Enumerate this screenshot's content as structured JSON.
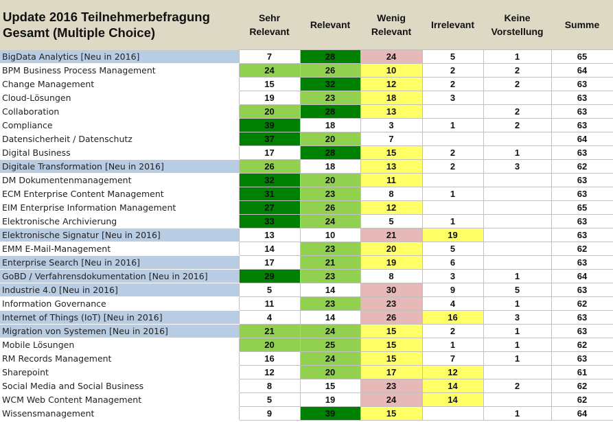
{
  "title_line1": "Update 2016 Teilnehmerbefragung",
  "title_line2": "Gesamt (Multiple Choice)",
  "columns": [
    "Sehr Relevant",
    "Relevant",
    "Wenig Relevant",
    "Irrelevant",
    "Keine Vorstellung",
    "Summe"
  ],
  "colors": {
    "g": "#008000",
    "l": "#92D050",
    "y": "#FFFF66",
    "r": "#E6B8B7",
    "": "#FFFFFF",
    "highlight": "#B8CCE4",
    "header": "#DDD9C4"
  },
  "rows": [
    {
      "label": "BigData Analytics [Neu in 2016]",
      "hl": true,
      "values": [
        "7",
        "28",
        "24",
        "5",
        "1",
        "65"
      ],
      "fills": [
        "",
        "g",
        "r",
        "",
        "",
        ""
      ]
    },
    {
      "label": "BPM Business Process Management",
      "hl": false,
      "values": [
        "24",
        "26",
        "10",
        "2",
        "2",
        "64"
      ],
      "fills": [
        "l",
        "l",
        "y",
        "",
        "",
        ""
      ]
    },
    {
      "label": "Change Management",
      "hl": false,
      "values": [
        "15",
        "32",
        "12",
        "2",
        "2",
        "63"
      ],
      "fills": [
        "",
        "g",
        "y",
        "",
        "",
        ""
      ]
    },
    {
      "label": "Cloud-Lösungen",
      "hl": false,
      "values": [
        "19",
        "23",
        "18",
        "3",
        "",
        "63"
      ],
      "fills": [
        "",
        "l",
        "y",
        "",
        "",
        ""
      ]
    },
    {
      "label": "Collaboration",
      "hl": false,
      "values": [
        "20",
        "28",
        "13",
        "",
        "2",
        "63"
      ],
      "fills": [
        "l",
        "g",
        "y",
        "",
        "",
        ""
      ]
    },
    {
      "label": "Compliance",
      "hl": false,
      "values": [
        "39",
        "18",
        "3",
        "1",
        "2",
        "63"
      ],
      "fills": [
        "g",
        "",
        "",
        "",
        "",
        ""
      ]
    },
    {
      "label": "Datensicherheit / Datenschutz",
      "hl": false,
      "values": [
        "37",
        "20",
        "7",
        "",
        "",
        "64"
      ],
      "fills": [
        "g",
        "l",
        "",
        "",
        "",
        ""
      ]
    },
    {
      "label": "Digital Business",
      "hl": false,
      "values": [
        "17",
        "28",
        "15",
        "2",
        "1",
        "63"
      ],
      "fills": [
        "",
        "g",
        "y",
        "",
        "",
        ""
      ]
    },
    {
      "label": "Digitale Transformation [Neu in 2016]",
      "hl": true,
      "values": [
        "26",
        "18",
        "13",
        "2",
        "3",
        "62"
      ],
      "fills": [
        "l",
        "",
        "y",
        "",
        "",
        ""
      ]
    },
    {
      "label": "DM Dokumentenmanagement",
      "hl": false,
      "values": [
        "32",
        "20",
        "11",
        "",
        "",
        "63"
      ],
      "fills": [
        "g",
        "l",
        "y",
        "",
        "",
        ""
      ]
    },
    {
      "label": "ECM Enterprise Content Management",
      "hl": false,
      "values": [
        "31",
        "23",
        "8",
        "1",
        "",
        "63"
      ],
      "fills": [
        "g",
        "l",
        "",
        "",
        "",
        ""
      ]
    },
    {
      "label": "EIM Enterprise Information Management",
      "hl": false,
      "values": [
        "27",
        "26",
        "12",
        "",
        "",
        "65"
      ],
      "fills": [
        "g",
        "l",
        "y",
        "",
        "",
        ""
      ]
    },
    {
      "label": "Elektronische Archivierung",
      "hl": false,
      "values": [
        "33",
        "24",
        "5",
        "1",
        "",
        "63"
      ],
      "fills": [
        "g",
        "l",
        "",
        "",
        "",
        ""
      ]
    },
    {
      "label": "Elektronische Signatur [Neu in 2016]",
      "hl": true,
      "values": [
        "13",
        "10",
        "21",
        "19",
        "",
        "63"
      ],
      "fills": [
        "",
        "",
        "r",
        "y",
        "",
        ""
      ]
    },
    {
      "label": "EMM E-Mail-Management",
      "hl": false,
      "values": [
        "14",
        "23",
        "20",
        "5",
        "",
        "62"
      ],
      "fills": [
        "",
        "l",
        "y",
        "",
        "",
        ""
      ]
    },
    {
      "label": "Enterprise Search [Neu in 2016]",
      "hl": true,
      "values": [
        "17",
        "21",
        "19",
        "6",
        "",
        "63"
      ],
      "fills": [
        "",
        "l",
        "y",
        "",
        "",
        ""
      ]
    },
    {
      "label": "GoBD / Verfahrensdokumentation [Neu in 2016]",
      "hl": true,
      "values": [
        "29",
        "23",
        "8",
        "3",
        "1",
        "64"
      ],
      "fills": [
        "g",
        "l",
        "",
        "",
        "",
        ""
      ]
    },
    {
      "label": "Industrie 4.0 [Neu in 2016]",
      "hl": true,
      "values": [
        "5",
        "14",
        "30",
        "9",
        "5",
        "63"
      ],
      "fills": [
        "",
        "",
        "r",
        "",
        "",
        ""
      ]
    },
    {
      "label": "Information Governance",
      "hl": false,
      "values": [
        "11",
        "23",
        "23",
        "4",
        "1",
        "62"
      ],
      "fills": [
        "",
        "l",
        "r",
        "",
        "",
        ""
      ]
    },
    {
      "label": "Internet of Things (IoT) [Neu in 2016]",
      "hl": true,
      "values": [
        "4",
        "14",
        "26",
        "16",
        "3",
        "63"
      ],
      "fills": [
        "",
        "",
        "r",
        "y",
        "",
        ""
      ]
    },
    {
      "label": "Migration von Systemen [Neu in 2016]",
      "hl": true,
      "values": [
        "21",
        "24",
        "15",
        "2",
        "1",
        "63"
      ],
      "fills": [
        "l",
        "l",
        "y",
        "",
        "",
        ""
      ]
    },
    {
      "label": "Mobile Lösungen",
      "hl": false,
      "values": [
        "20",
        "25",
        "15",
        "1",
        "1",
        "62"
      ],
      "fills": [
        "l",
        "l",
        "y",
        "",
        "",
        ""
      ]
    },
    {
      "label": "RM Records Management",
      "hl": false,
      "values": [
        "16",
        "24",
        "15",
        "7",
        "1",
        "63"
      ],
      "fills": [
        "",
        "l",
        "y",
        "",
        "",
        ""
      ]
    },
    {
      "label": "Sharepoint",
      "hl": false,
      "values": [
        "12",
        "20",
        "17",
        "12",
        "",
        "61"
      ],
      "fills": [
        "",
        "l",
        "y",
        "y",
        "",
        ""
      ]
    },
    {
      "label": "Social Media and Social Business",
      "hl": false,
      "values": [
        "8",
        "15",
        "23",
        "14",
        "2",
        "62"
      ],
      "fills": [
        "",
        "",
        "r",
        "y",
        "",
        ""
      ]
    },
    {
      "label": "WCM Web Content Management",
      "hl": false,
      "values": [
        "5",
        "19",
        "24",
        "14",
        "",
        "62"
      ],
      "fills": [
        "",
        "",
        "r",
        "y",
        "",
        ""
      ]
    },
    {
      "label": "Wissensmanagement",
      "hl": false,
      "values": [
        "9",
        "39",
        "15",
        "",
        "1",
        "64"
      ],
      "fills": [
        "",
        "g",
        "y",
        "",
        "",
        ""
      ]
    }
  ]
}
